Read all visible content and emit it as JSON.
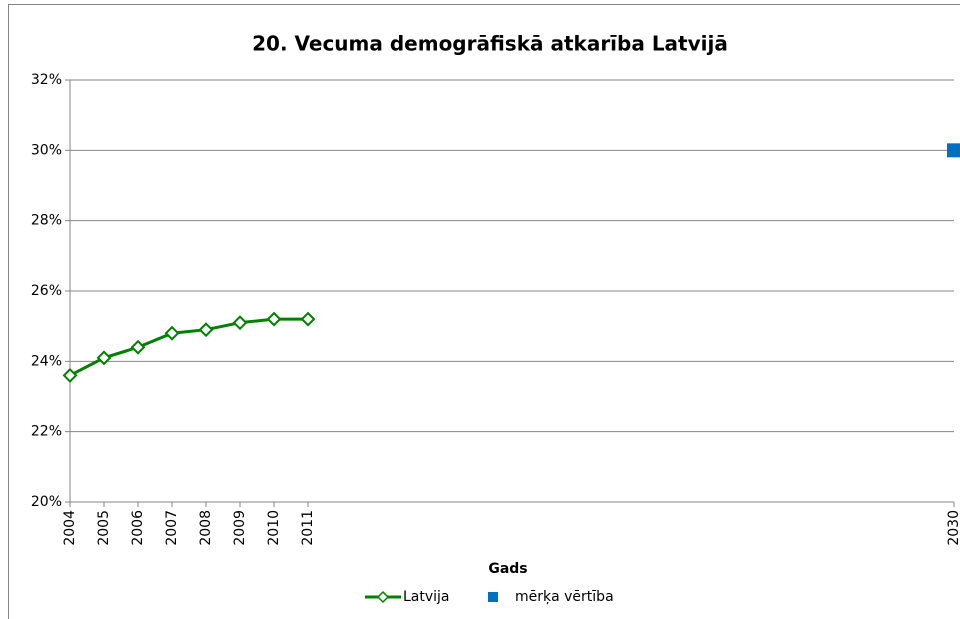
{
  "chart_data": {
    "type": "line",
    "title": "20. Vecuma demogrāfiskā atkarība Latvijā",
    "x_label": "Gads",
    "series": [
      {
        "name": "Latvija",
        "color": "#008000",
        "marker": "diamond",
        "x": [
          2004,
          2005,
          2006,
          2007,
          2008,
          2009,
          2010,
          2011
        ],
        "values": [
          23.6,
          24.1,
          24.4,
          24.8,
          24.9,
          25.1,
          25.2,
          25.2
        ]
      },
      {
        "name": "mērķa vērtība",
        "color": "#0070c0",
        "marker": "square",
        "x": [
          2030
        ],
        "values": [
          30
        ]
      }
    ],
    "xlim": [
      2004,
      2030
    ],
    "xticks": [
      2004,
      2005,
      2006,
      2007,
      2008,
      2009,
      2010,
      2011,
      2030
    ],
    "ylim": [
      20,
      32
    ],
    "yticks": [
      {
        "value": 20,
        "label": "20%"
      },
      {
        "value": 22,
        "label": "22%"
      },
      {
        "value": 24,
        "label": "24%"
      },
      {
        "value": 26,
        "label": "26%"
      },
      {
        "value": 28,
        "label": "28%"
      },
      {
        "value": 30,
        "label": "30%"
      },
      {
        "value": 32,
        "label": "32%"
      }
    ],
    "grid": true,
    "legend": "bottom"
  }
}
